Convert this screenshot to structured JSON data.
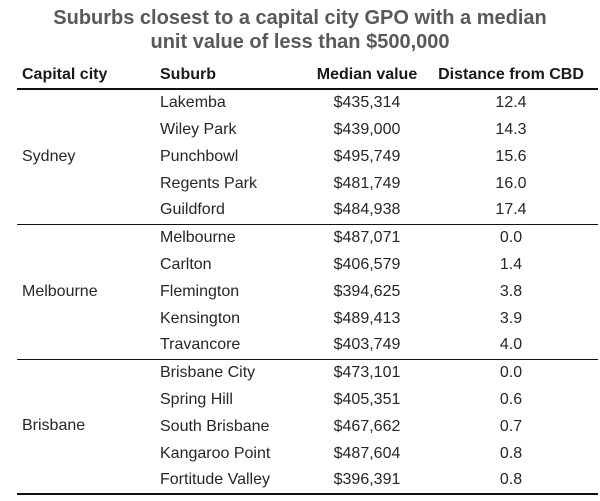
{
  "title": {
    "lines": [
      "Suburbs closest to a capital city GPO with a median",
      "unit value of less than $500,000"
    ]
  },
  "table": {
    "headers": [
      "Capital city",
      "Suburb",
      "Median value",
      "Distance from CBD"
    ],
    "groups": [
      {
        "city": "Sydney",
        "rows": [
          {
            "suburb": "Lakemba",
            "median_value": "$435,314",
            "distance_from_cbd": "12.4"
          },
          {
            "suburb": "Wiley Park",
            "median_value": "$439,000",
            "distance_from_cbd": "14.3"
          },
          {
            "suburb": "Punchbowl",
            "median_value": "$495,749",
            "distance_from_cbd": "15.6"
          },
          {
            "suburb": "Regents Park",
            "median_value": "$481,749",
            "distance_from_cbd": "16.0"
          },
          {
            "suburb": "Guildford",
            "median_value": "$484,938",
            "distance_from_cbd": "17.4"
          }
        ]
      },
      {
        "city": "Melbourne",
        "rows": [
          {
            "suburb": "Melbourne",
            "median_value": "$487,071",
            "distance_from_cbd": "0.0"
          },
          {
            "suburb": "Carlton",
            "median_value": "$406,579",
            "distance_from_cbd": "1.4"
          },
          {
            "suburb": "Flemington",
            "median_value": "$394,625",
            "distance_from_cbd": "3.8"
          },
          {
            "suburb": "Kensington",
            "median_value": "$489,413",
            "distance_from_cbd": "3.9"
          },
          {
            "suburb": "Travancore",
            "median_value": "$403,749",
            "distance_from_cbd": "4.0"
          }
        ]
      },
      {
        "city": "Brisbane",
        "rows": [
          {
            "suburb": "Brisbane City",
            "median_value": "$473,101",
            "distance_from_cbd": "0.0"
          },
          {
            "suburb": "Spring Hill",
            "median_value": "$405,351",
            "distance_from_cbd": "0.6"
          },
          {
            "suburb": "South Brisbane",
            "median_value": "$467,662",
            "distance_from_cbd": "0.7"
          },
          {
            "suburb": "Kangaroo Point",
            "median_value": "$487,604",
            "distance_from_cbd": "0.8"
          },
          {
            "suburb": "Fortitude Valley",
            "median_value": "$396,391",
            "distance_from_cbd": "0.8"
          }
        ]
      }
    ]
  },
  "chart_data": {
    "type": "table",
    "title": "Suburbs closest to a capital city GPO with a median unit value of less than $500,000",
    "columns": [
      "Capital city",
      "Suburb",
      "Median value",
      "Distance from CBD"
    ],
    "rows": [
      [
        "Sydney",
        "Lakemba",
        "$435,314",
        "12.4"
      ],
      [
        "Sydney",
        "Wiley Park",
        "$439,000",
        "14.3"
      ],
      [
        "Sydney",
        "Punchbowl",
        "$495,749",
        "15.6"
      ],
      [
        "Sydney",
        "Regents Park",
        "$481,749",
        "16.0"
      ],
      [
        "Sydney",
        "Guildford",
        "$484,938",
        "17.4"
      ],
      [
        "Melbourne",
        "Melbourne",
        "$487,071",
        "0.0"
      ],
      [
        "Melbourne",
        "Carlton",
        "$406,579",
        "1.4"
      ],
      [
        "Melbourne",
        "Flemington",
        "$394,625",
        "3.8"
      ],
      [
        "Melbourne",
        "Kensington",
        "$489,413",
        "3.9"
      ],
      [
        "Melbourne",
        "Travancore",
        "$403,749",
        "4.0"
      ],
      [
        "Brisbane",
        "Brisbane City",
        "$473,101",
        "0.0"
      ],
      [
        "Brisbane",
        "Spring Hill",
        "$405,351",
        "0.6"
      ],
      [
        "Brisbane",
        "South Brisbane",
        "$467,662",
        "0.7"
      ],
      [
        "Brisbane",
        "Kangaroo Point",
        "$487,604",
        "0.8"
      ],
      [
        "Brisbane",
        "Fortitude Valley",
        "$396,391",
        "0.8"
      ]
    ]
  },
  "colors": {
    "background": "#ffffff",
    "title_text": "#595959",
    "table_text": "#262626",
    "header_text": "#1a1a1a",
    "border": "#111111"
  }
}
